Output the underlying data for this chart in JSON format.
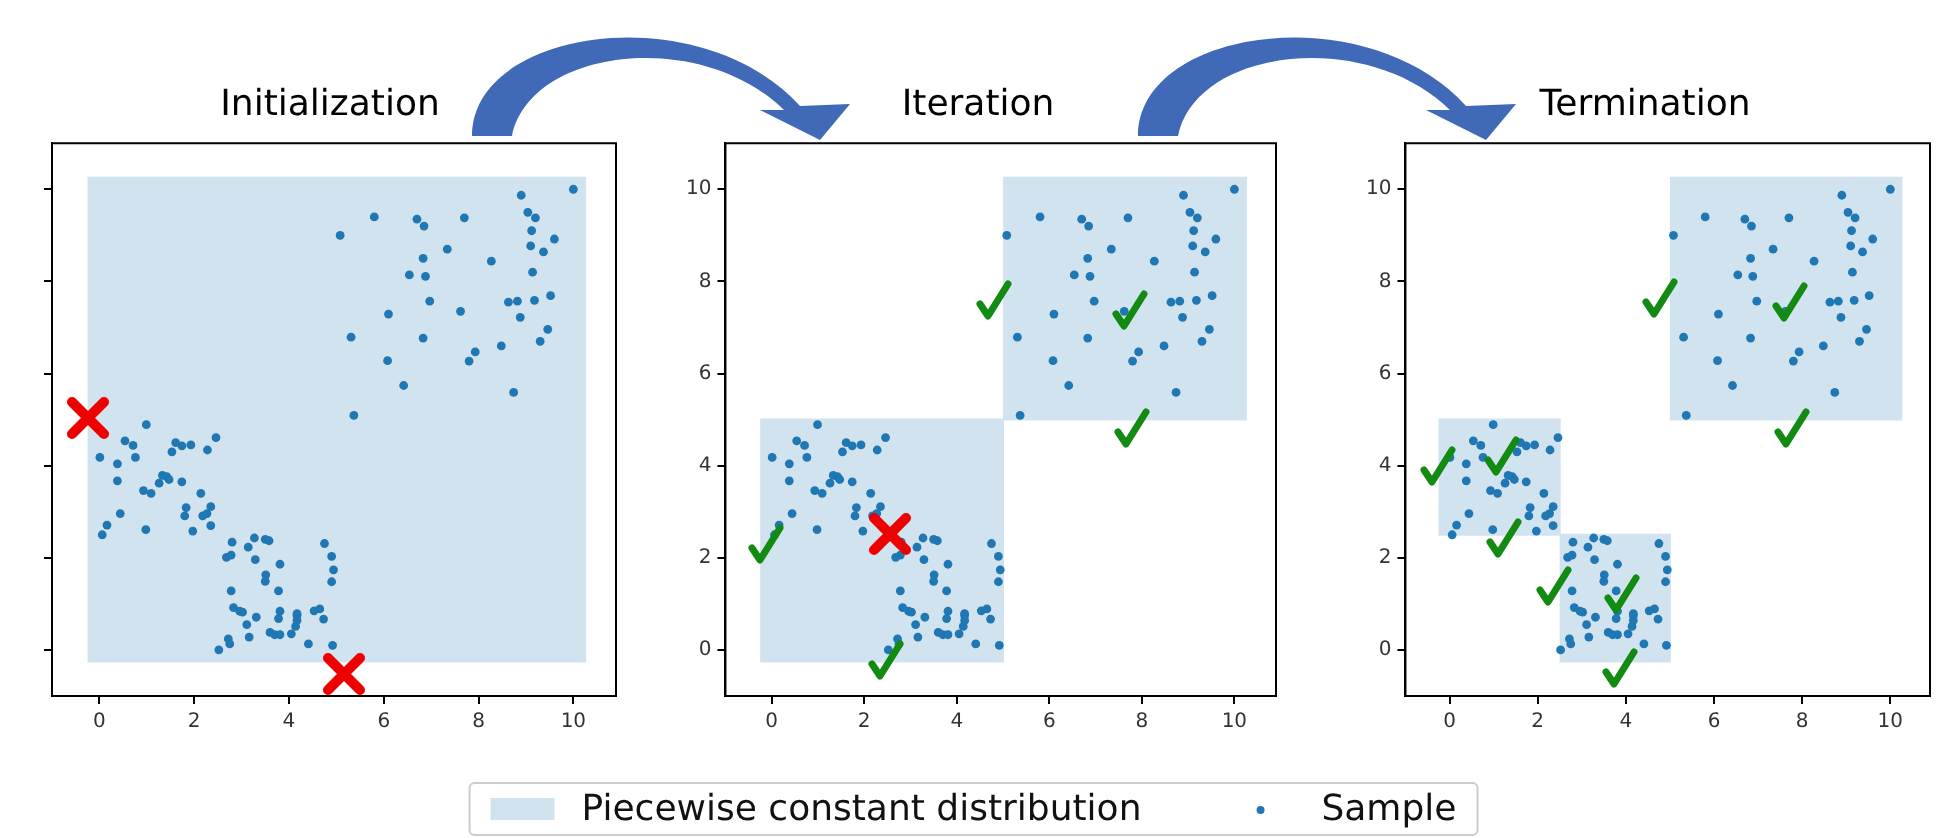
{
  "chart_data": [
    {
      "type": "scatter",
      "title": "Initialization",
      "xlim": [
        -1,
        10.9
      ],
      "ylim": [
        -1,
        11
      ],
      "xticks": [
        0,
        2,
        4,
        6,
        8,
        10
      ],
      "yticks": [
        0,
        2,
        4,
        6,
        8,
        10
      ],
      "tick_labels": "x",
      "legend": "bottom",
      "series": [
        {
          "type": "area",
          "marker": "none",
          "name": "Piecewise constant distribution",
          "color": "#d2e3f0",
          "x": [
            -0.25,
            10.25,
            10.25,
            -0.25
          ],
          "values": [
            10.25,
            10.25,
            -0.25,
            -0.25
          ]
        },
        {
          "marker": "circle",
          "name": "Sample",
          "color": "#1f77b4",
          "x": [
            10,
            8.9,
            9.04,
            9.2,
            7.7,
            5.8,
            6.7,
            6.85,
            5.08,
            9.12,
            9.6,
            9.1,
            9.37,
            7.34,
            6.83,
            8.27,
            9.14,
            6.54,
            6.88,
            6.97,
            9.52,
            9.18,
            8.63,
            8.82,
            7.62,
            6.1,
            8.88,
            9.46,
            5.31,
            6.83,
            9.3,
            7.93,
            7.8,
            6.08,
            8.48,
            6.42,
            8.74,
            5.37,
            0.01,
            0.99,
            0.54,
            0.71,
            0.38,
            0.76,
            0.38,
            1.53,
            1.61,
            1.74,
            1.93,
            2.46,
            2.28,
            1.26,
            1.33,
            1.42,
            1.47,
            0.93,
            1.09,
            1.74,
            2.14,
            1.83,
            1.8,
            2.35,
            2.27,
            2.18,
            1.97,
            0.98,
            0.44,
            0.06,
            0.16,
            2.35,
            2.68,
            2.78,
            2.8,
            3.14,
            3.27,
            3.5,
            3.58,
            3.29,
            3.81,
            3.51,
            3.5,
            3.78,
            2.78,
            2.83,
            2.96,
            3.02,
            3.31,
            3.11,
            3.16,
            2.72,
            2.75,
            2.52,
            3.6,
            3.7,
            3.81,
            3.81,
            3.78,
            4.05,
            4.14,
            4.17,
            4.17,
            4.17,
            4.41,
            4.53,
            4.65,
            4.73,
            4.75,
            4.9,
            4.94,
            4.9,
            4.92
          ],
          "values": [
            10,
            9.87,
            9.5,
            9.38,
            9.38,
            9.4,
            9.35,
            9.2,
            9,
            9.1,
            8.92,
            8.77,
            8.64,
            8.7,
            8.5,
            8.44,
            8.2,
            8.14,
            8.11,
            7.57,
            7.69,
            7.59,
            7.55,
            7.57,
            7.35,
            7.29,
            7.22,
            6.96,
            6.79,
            6.77,
            6.7,
            6.47,
            6.27,
            6.28,
            6.6,
            5.74,
            5.59,
            5.09,
            4.18,
            4.89,
            4.54,
            4.44,
            4.04,
            4.18,
            3.67,
            4.3,
            4.5,
            4.43,
            4.45,
            4.61,
            4.34,
            3.62,
            3.79,
            3.76,
            3.7,
            3.46,
            3.4,
            3.65,
            3.4,
            3.09,
            2.91,
            3.11,
            2.96,
            2.91,
            2.58,
            2.61,
            2.96,
            2.5,
            2.71,
            2.7,
            2.01,
            2.06,
            2.34,
            2.23,
            2.43,
            2.4,
            2.37,
            1.96,
            1.86,
            1.63,
            1.49,
            1.28,
            1.28,
            0.92,
            0.84,
            0.82,
            0.71,
            0.55,
            0.28,
            0.24,
            0.13,
            0,
            0.38,
            0.33,
            0.33,
            0.84,
            0.68,
            0.35,
            0.51,
            0.64,
            0.75,
            0.79,
            0.13,
            0.85,
            0.89,
            0.67,
            2.31,
            2.03,
            1.74,
            1.48,
            0.1
          ]
        }
      ]
    },
    {
      "type": "scatter",
      "title": "Iteration",
      "xlim": [
        -1,
        10.9
      ],
      "ylim": [
        -1,
        11
      ],
      "xticks": [
        0,
        2,
        4,
        6,
        8,
        10
      ],
      "yticks": [
        0,
        2,
        4,
        6,
        8,
        10
      ],
      "series": [
        {
          "type": "area",
          "marker": "none",
          "color": "#d2e3f0",
          "x": [
            -0.25,
            5,
            5,
            -0.25
          ],
          "values": [
            5,
            5,
            -0.25,
            -0.25
          ]
        },
        {
          "type": "area",
          "marker": "none",
          "color": "#d2e3f0",
          "x": [
            5,
            10.25,
            10.25,
            5
          ],
          "values": [
            10.25,
            10.25,
            5,
            5
          ]
        },
        {
          "marker": "circle",
          "color": "#1f77b4",
          "x": [
            10,
            8.9,
            9.04,
            9.2,
            7.7,
            5.8,
            6.7,
            6.85,
            5.08,
            9.12,
            9.6,
            9.1,
            9.37,
            7.34,
            6.83,
            8.27,
            9.14,
            6.54,
            6.88,
            6.97,
            9.52,
            9.18,
            8.63,
            8.82,
            7.62,
            6.1,
            8.88,
            9.46,
            5.31,
            6.83,
            9.3,
            7.93,
            7.8,
            6.08,
            8.48,
            6.42,
            8.74,
            5.37,
            0.01,
            0.99,
            0.54,
            0.71,
            0.38,
            0.76,
            0.38,
            1.53,
            1.61,
            1.74,
            1.93,
            2.46,
            2.28,
            1.26,
            1.33,
            1.42,
            1.47,
            0.93,
            1.09,
            1.74,
            2.14,
            1.83,
            1.8,
            2.35,
            2.27,
            2.18,
            1.97,
            0.98,
            0.44,
            0.06,
            0.16,
            2.35,
            2.68,
            2.78,
            2.8,
            3.14,
            3.27,
            3.5,
            3.58,
            3.29,
            3.81,
            3.51,
            3.5,
            3.78,
            2.78,
            2.83,
            2.96,
            3.02,
            3.31,
            3.11,
            3.16,
            2.72,
            2.75,
            2.52,
            3.6,
            3.7,
            3.81,
            3.81,
            3.78,
            4.05,
            4.14,
            4.17,
            4.17,
            4.17,
            4.41,
            4.53,
            4.65,
            4.73,
            4.75,
            4.9,
            4.94,
            4.9,
            4.92
          ],
          "values": [
            10,
            9.87,
            9.5,
            9.38,
            9.38,
            9.4,
            9.35,
            9.2,
            9,
            9.1,
            8.92,
            8.77,
            8.64,
            8.7,
            8.5,
            8.44,
            8.2,
            8.14,
            8.11,
            7.57,
            7.69,
            7.59,
            7.55,
            7.57,
            7.35,
            7.29,
            7.22,
            6.96,
            6.79,
            6.77,
            6.7,
            6.47,
            6.27,
            6.28,
            6.6,
            5.74,
            5.59,
            5.09,
            4.18,
            4.89,
            4.54,
            4.44,
            4.04,
            4.18,
            3.67,
            4.3,
            4.5,
            4.43,
            4.45,
            4.61,
            4.34,
            3.62,
            3.79,
            3.76,
            3.7,
            3.46,
            3.4,
            3.65,
            3.4,
            3.09,
            2.91,
            3.11,
            2.96,
            2.91,
            2.58,
            2.61,
            2.96,
            2.5,
            2.71,
            null,
            2.01,
            2.06,
            2.34,
            2.23,
            2.43,
            2.4,
            2.37,
            1.96,
            1.86,
            1.63,
            1.49,
            1.28,
            1.28,
            0.92,
            0.84,
            0.82,
            0.71,
            0.55,
            0.28,
            0.24,
            0.13,
            0,
            0.38,
            0.33,
            0.33,
            0.84,
            0.68,
            0.35,
            0.51,
            0.64,
            0.75,
            0.79,
            0.13,
            0.85,
            0.89,
            0.67,
            2.31,
            2.03,
            1.74,
            1.48,
            0.1
          ]
        }
      ]
    },
    {
      "type": "scatter",
      "title": "Termination",
      "xlim": [
        -1,
        10.9
      ],
      "ylim": [
        -1,
        11
      ],
      "xticks": [
        0,
        2,
        4,
        6,
        8,
        10
      ],
      "yticks": [
        0,
        2,
        4,
        6,
        8,
        10
      ],
      "series": [
        {
          "type": "area",
          "marker": "none",
          "color": "#d2e3f0",
          "x": [
            -0.25,
            2.5,
            2.5,
            -0.25
          ],
          "values": [
            5,
            5,
            2.5,
            2.5
          ]
        },
        {
          "type": "area",
          "marker": "none",
          "color": "#d2e3f0",
          "x": [
            2.5,
            5,
            5,
            2.5
          ],
          "values": [
            2.5,
            2.5,
            -0.25,
            -0.25
          ]
        },
        {
          "type": "area",
          "marker": "none",
          "color": "#d2e3f0",
          "x": [
            5,
            10.25,
            10.25,
            5
          ],
          "values": [
            10.25,
            10.25,
            5,
            5
          ]
        },
        {
          "marker": "circle",
          "color": "#1f77b4",
          "x": [
            10,
            8.9,
            9.04,
            9.2,
            7.7,
            5.8,
            6.7,
            6.85,
            5.08,
            9.12,
            9.6,
            9.1,
            9.37,
            7.34,
            6.83,
            8.27,
            9.14,
            6.54,
            6.88,
            6.97,
            9.52,
            9.18,
            8.63,
            8.82,
            7.62,
            6.1,
            8.88,
            9.46,
            5.31,
            6.83,
            9.3,
            7.93,
            7.8,
            6.08,
            8.48,
            6.42,
            8.74,
            5.37,
            0.01,
            0.99,
            0.54,
            0.71,
            0.38,
            0.76,
            0.38,
            1.53,
            1.61,
            1.74,
            1.93,
            2.46,
            2.28,
            1.26,
            1.33,
            1.42,
            1.47,
            0.93,
            1.09,
            1.74,
            2.14,
            1.83,
            1.8,
            2.35,
            2.27,
            2.18,
            1.97,
            0.98,
            0.44,
            0.06,
            0.16,
            2.35,
            2.68,
            2.78,
            2.8,
            3.14,
            3.27,
            3.5,
            3.58,
            3.29,
            3.81,
            3.51,
            3.5,
            3.78,
            2.78,
            2.83,
            2.96,
            3.02,
            3.31,
            3.11,
            3.16,
            2.72,
            2.75,
            2.52,
            3.6,
            3.7,
            3.81,
            3.81,
            3.78,
            4.05,
            4.14,
            4.17,
            4.17,
            4.17,
            4.41,
            4.53,
            4.65,
            4.73,
            4.75,
            4.9,
            4.94,
            4.9,
            4.92
          ],
          "values": [
            10,
            9.87,
            9.5,
            9.38,
            9.38,
            9.4,
            9.35,
            9.2,
            9,
            9.1,
            8.92,
            8.77,
            8.64,
            8.7,
            8.5,
            8.44,
            8.2,
            8.14,
            8.11,
            7.57,
            7.69,
            7.59,
            7.55,
            7.57,
            7.35,
            7.29,
            7.22,
            6.96,
            6.79,
            6.77,
            6.7,
            6.47,
            6.27,
            6.28,
            6.6,
            5.74,
            5.59,
            5.09,
            4.18,
            4.89,
            4.54,
            4.44,
            4.04,
            4.18,
            3.67,
            4.3,
            4.5,
            4.43,
            4.45,
            4.61,
            4.34,
            3.62,
            3.79,
            3.76,
            3.7,
            3.46,
            3.4,
            3.65,
            3.4,
            3.09,
            2.91,
            3.11,
            2.96,
            2.91,
            2.58,
            2.61,
            2.96,
            2.5,
            2.71,
            2.7,
            2.01,
            2.06,
            2.34,
            2.23,
            2.43,
            2.4,
            2.37,
            1.96,
            1.86,
            1.63,
            1.49,
            1.28,
            1.28,
            0.92,
            0.84,
            0.82,
            0.71,
            0.55,
            0.28,
            0.24,
            0.13,
            0,
            0.38,
            0.33,
            0.33,
            0.84,
            0.68,
            0.35,
            0.51,
            0.64,
            0.75,
            0.79,
            0.13,
            0.85,
            0.89,
            0.67,
            2.31,
            2.03,
            1.74,
            1.48,
            0.1
          ]
        }
      ]
    }
  ]
}
